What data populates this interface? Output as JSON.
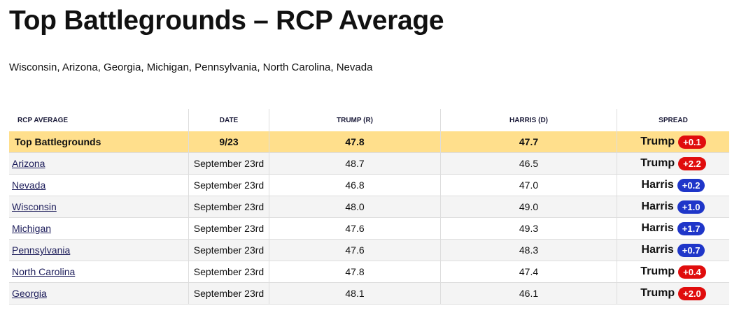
{
  "header": {
    "title": "Top Battlegrounds – RCP Average",
    "subtitle": "Wisconsin, Arizona, Georgia, Michigan, Pennsylvania, North Carolina, Nevada"
  },
  "table": {
    "columns": [
      "RCP AVERAGE",
      "DATE",
      "TRUMP (R)",
      "HARRIS (D)",
      "SPREAD"
    ],
    "rows": [
      {
        "name": "Top Battlegrounds",
        "date": "9/23",
        "trump": "47.8",
        "harris": "47.7",
        "leader": "Trump",
        "spread": "+0.1",
        "color": "#e00d0d"
      },
      {
        "name": "Arizona",
        "date": "September 23rd",
        "trump": "48.7",
        "harris": "46.5",
        "leader": "Trump",
        "spread": "+2.2",
        "color": "#e00d0d"
      },
      {
        "name": "Nevada",
        "date": "September 23rd",
        "trump": "46.8",
        "harris": "47.0",
        "leader": "Harris",
        "spread": "+0.2",
        "color": "#1f36c9"
      },
      {
        "name": "Wisconsin",
        "date": "September 23rd",
        "trump": "48.0",
        "harris": "49.0",
        "leader": "Harris",
        "spread": "+1.0",
        "color": "#1f36c9"
      },
      {
        "name": "Michigan",
        "date": "September 23rd",
        "trump": "47.6",
        "harris": "49.3",
        "leader": "Harris",
        "spread": "+1.7",
        "color": "#1f36c9"
      },
      {
        "name": "Pennsylvania",
        "date": "September 23rd",
        "trump": "47.6",
        "harris": "48.3",
        "leader": "Harris",
        "spread": "+0.7",
        "color": "#1f36c9"
      },
      {
        "name": "North Carolina",
        "date": "September 23rd",
        "trump": "47.8",
        "harris": "47.4",
        "leader": "Trump",
        "spread": "+0.4",
        "color": "#e00d0d"
      },
      {
        "name": "Georgia",
        "date": "September 23rd",
        "trump": "48.1",
        "harris": "46.1",
        "leader": "Trump",
        "spread": "+2.0",
        "color": "#e00d0d"
      }
    ]
  }
}
